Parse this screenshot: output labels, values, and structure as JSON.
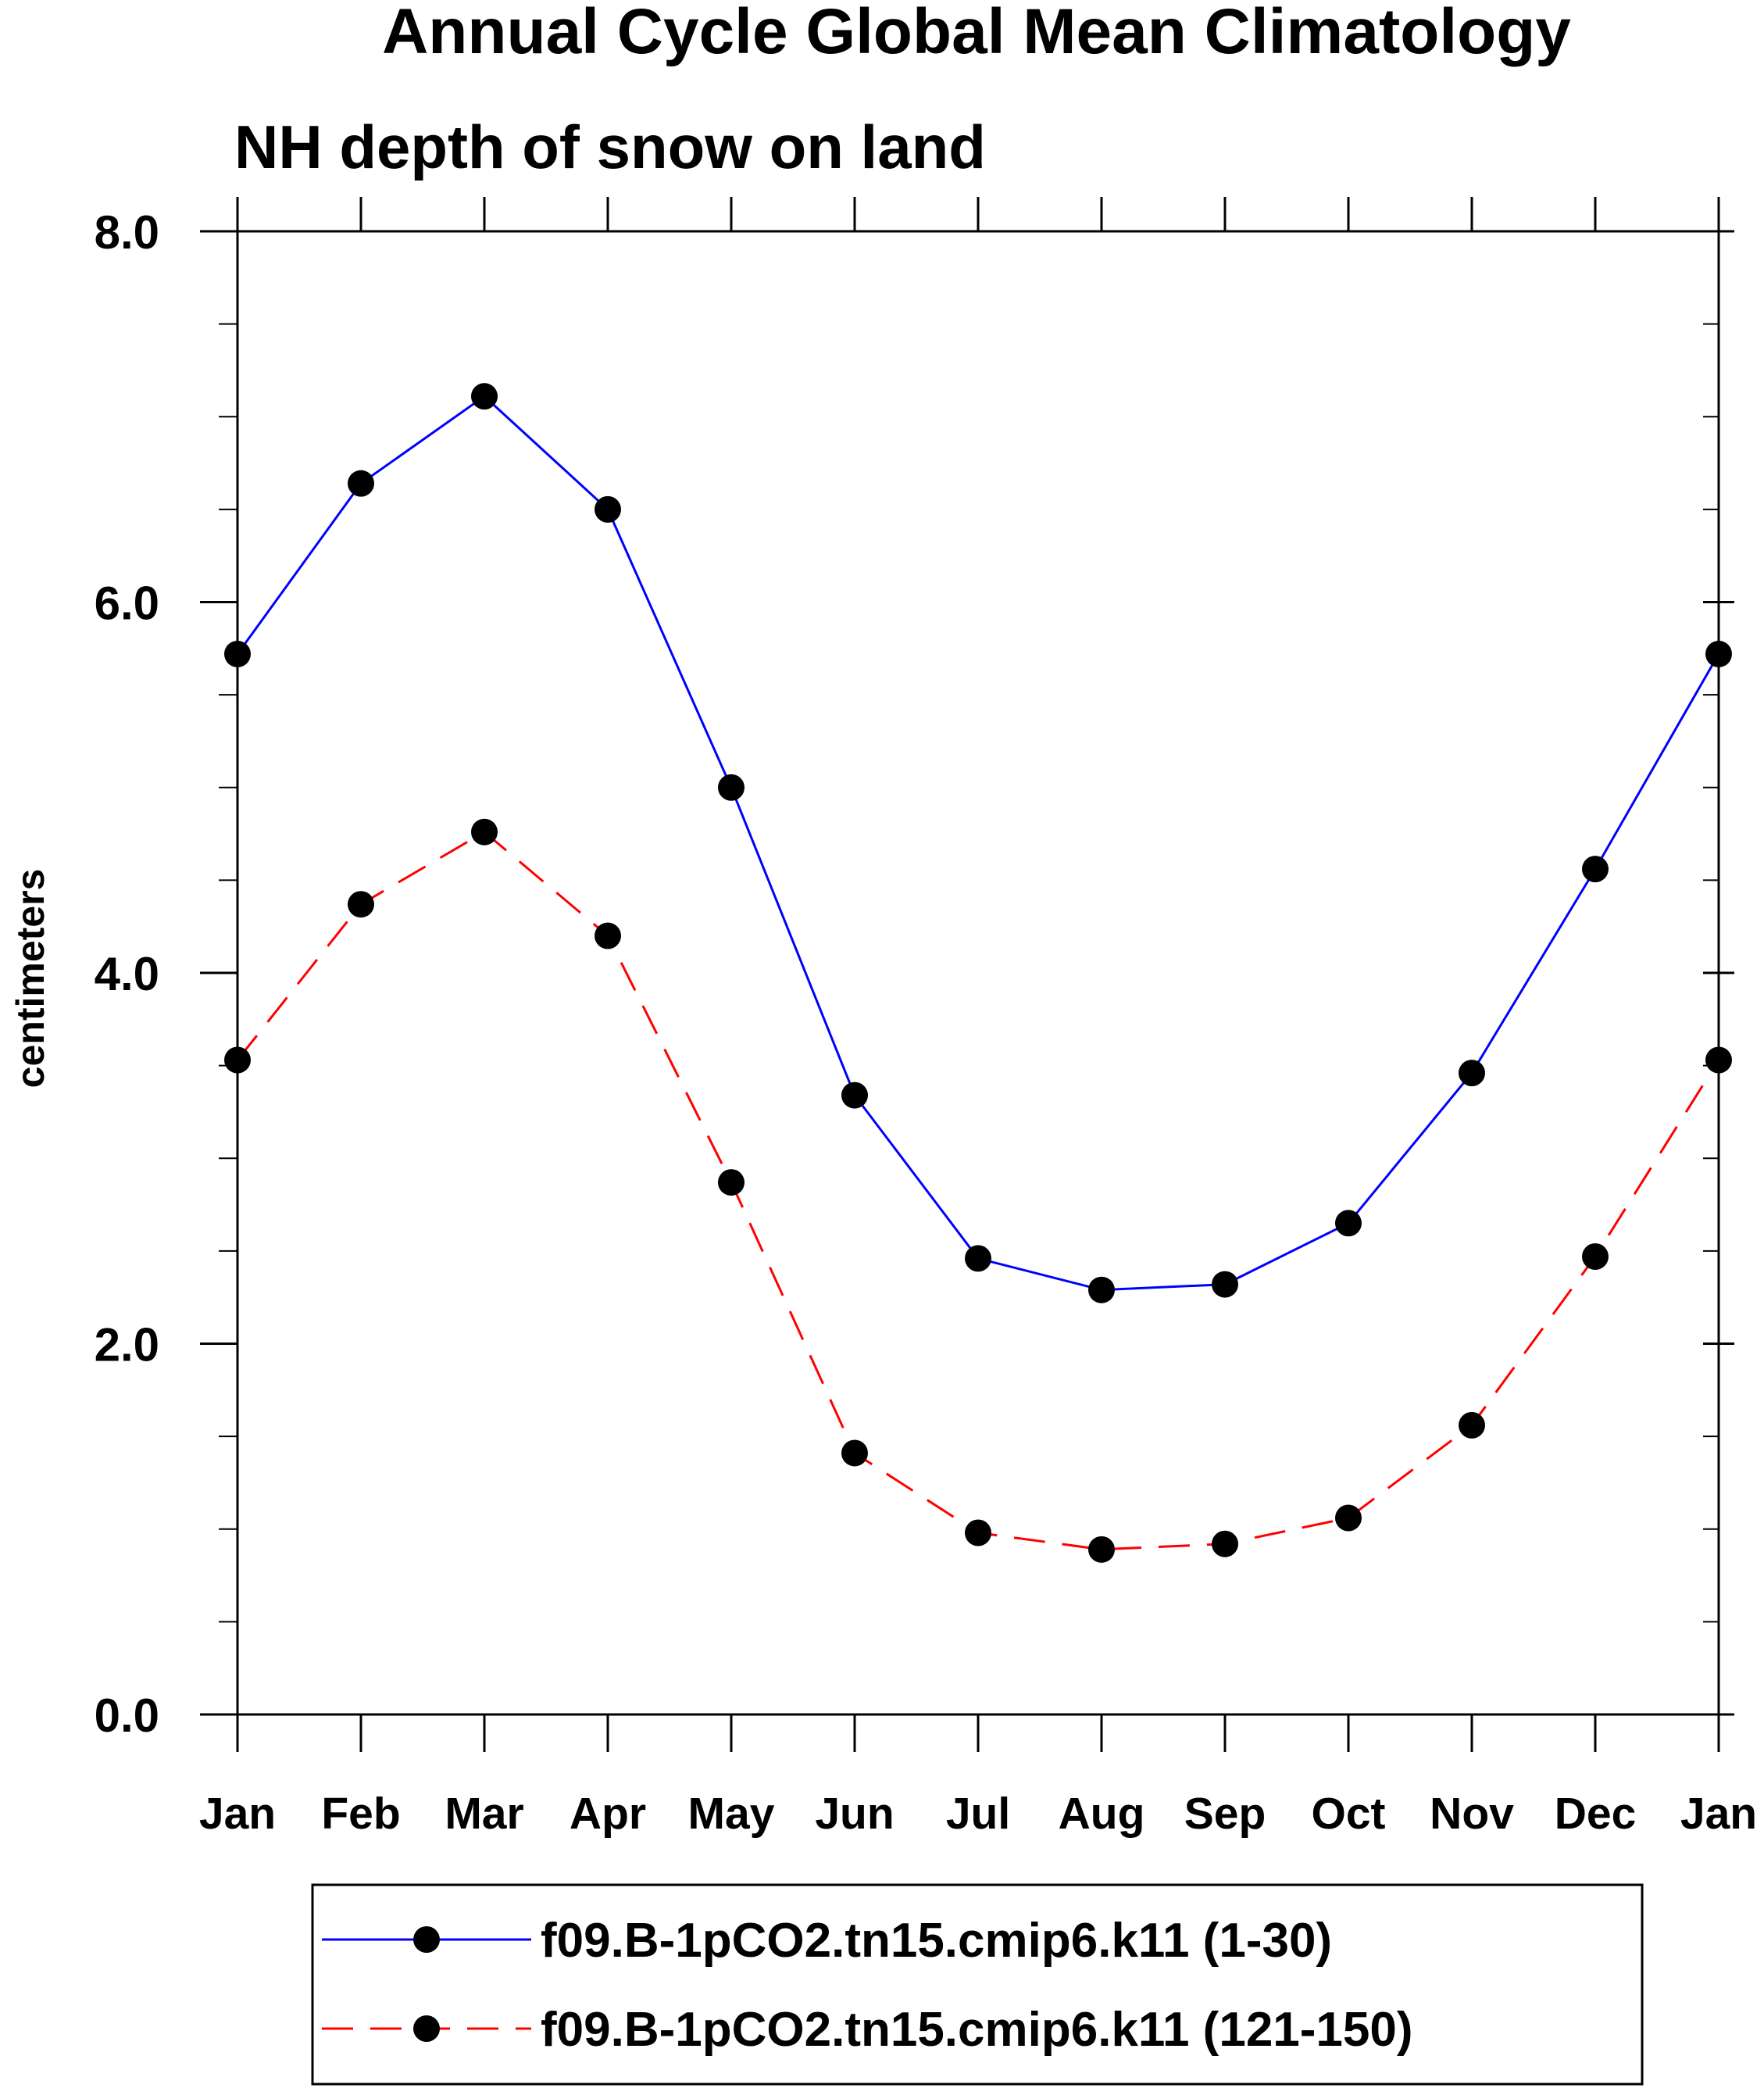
{
  "chart_data": {
    "type": "line",
    "title": "Annual Cycle Global Mean Climatology",
    "subtitle": "NH depth of snow on land",
    "xlabel": "",
    "ylabel": "centimeters",
    "categories": [
      "Jan",
      "Feb",
      "Mar",
      "Apr",
      "May",
      "Jun",
      "Jul",
      "Aug",
      "Sep",
      "Oct",
      "Nov",
      "Dec",
      "Jan"
    ],
    "ylim": [
      0,
      8
    ],
    "yticks": [
      "0.0",
      "2.0",
      "4.0",
      "6.0",
      "8.0"
    ],
    "series": [
      {
        "name": "f09.B-1pCO2.tn15.cmip6.k11 (1-30)",
        "color": "#0000ff",
        "dash": "solid",
        "values": [
          5.72,
          6.64,
          7.11,
          6.5,
          5.0,
          3.34,
          2.46,
          2.29,
          2.32,
          2.65,
          3.46,
          4.56,
          5.72
        ]
      },
      {
        "name": "f09.B-1pCO2.tn15.cmip6.k11 (121-150)",
        "color": "#ff0000",
        "dash": "dashed",
        "values": [
          3.53,
          4.37,
          4.76,
          4.2,
          2.87,
          1.41,
          0.98,
          0.89,
          0.92,
          1.06,
          1.56,
          2.47,
          3.53
        ]
      }
    ],
    "grid": false,
    "legend_position": "bottom"
  }
}
